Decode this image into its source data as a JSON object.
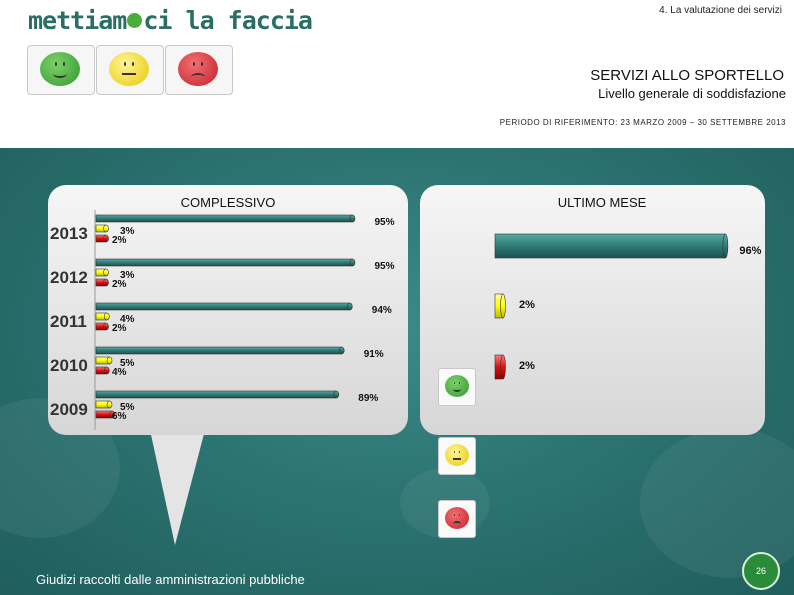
{
  "header": {
    "logo_text_a": "mettiam",
    "logo_text_b": "ci la faccia",
    "section": "4. La valutazione dei servizi",
    "title": "SERVIZI ALLO SPORTELLO",
    "subtitle": "Livello generale di soddisfazione",
    "period": "PERIODO DI RIFERIMENTO: 23 MARZO 2009 – 30 SETTEMBRE 2013"
  },
  "footer": {
    "note": "Giudizi raccolti dalle amministrazioni pubbliche",
    "page": "26"
  },
  "colors": {
    "teal": "#1f6b68",
    "bar_green_band": "#2e7a75",
    "yellow": "#ffff00",
    "red": "#cc0000",
    "panel": "#e8e8e8"
  },
  "chart_data": [
    {
      "type": "bar",
      "title": "COMPLESSIVO",
      "categories": [
        "2013",
        "2012",
        "2011",
        "2010",
        "2009"
      ],
      "series": [
        {
          "name": "",
          "color": "#2e7a75",
          "values": [
            95,
            95,
            94,
            91,
            89
          ],
          "labels": [
            "95%",
            "95%",
            "94%",
            "91%",
            "89%"
          ]
        },
        {
          "name": "",
          "color": "#ffff00",
          "values": [
            3,
            3,
            4,
            5,
            5
          ],
          "labels": [
            "3%",
            "3%",
            "4%",
            "5%",
            "5%"
          ]
        },
        {
          "name": "",
          "color": "#cc0000",
          "values": [
            2,
            2,
            2,
            4,
            6
          ],
          "labels": [
            "2%",
            "2%",
            "2%",
            "4%",
            "6%"
          ]
        }
      ],
      "ylim": [
        0,
        100
      ]
    },
    {
      "type": "bar",
      "title": "ULTIMO MESE",
      "categories": [
        "soddisfatti",
        "neutri",
        "insoddisfatti"
      ],
      "values": [
        96,
        2,
        2
      ],
      "labels": [
        "96%",
        "2%",
        "2%"
      ],
      "colors": [
        "#2e7a75",
        "#ffff00",
        "#cc0000"
      ],
      "ylim": [
        0,
        100
      ]
    }
  ]
}
